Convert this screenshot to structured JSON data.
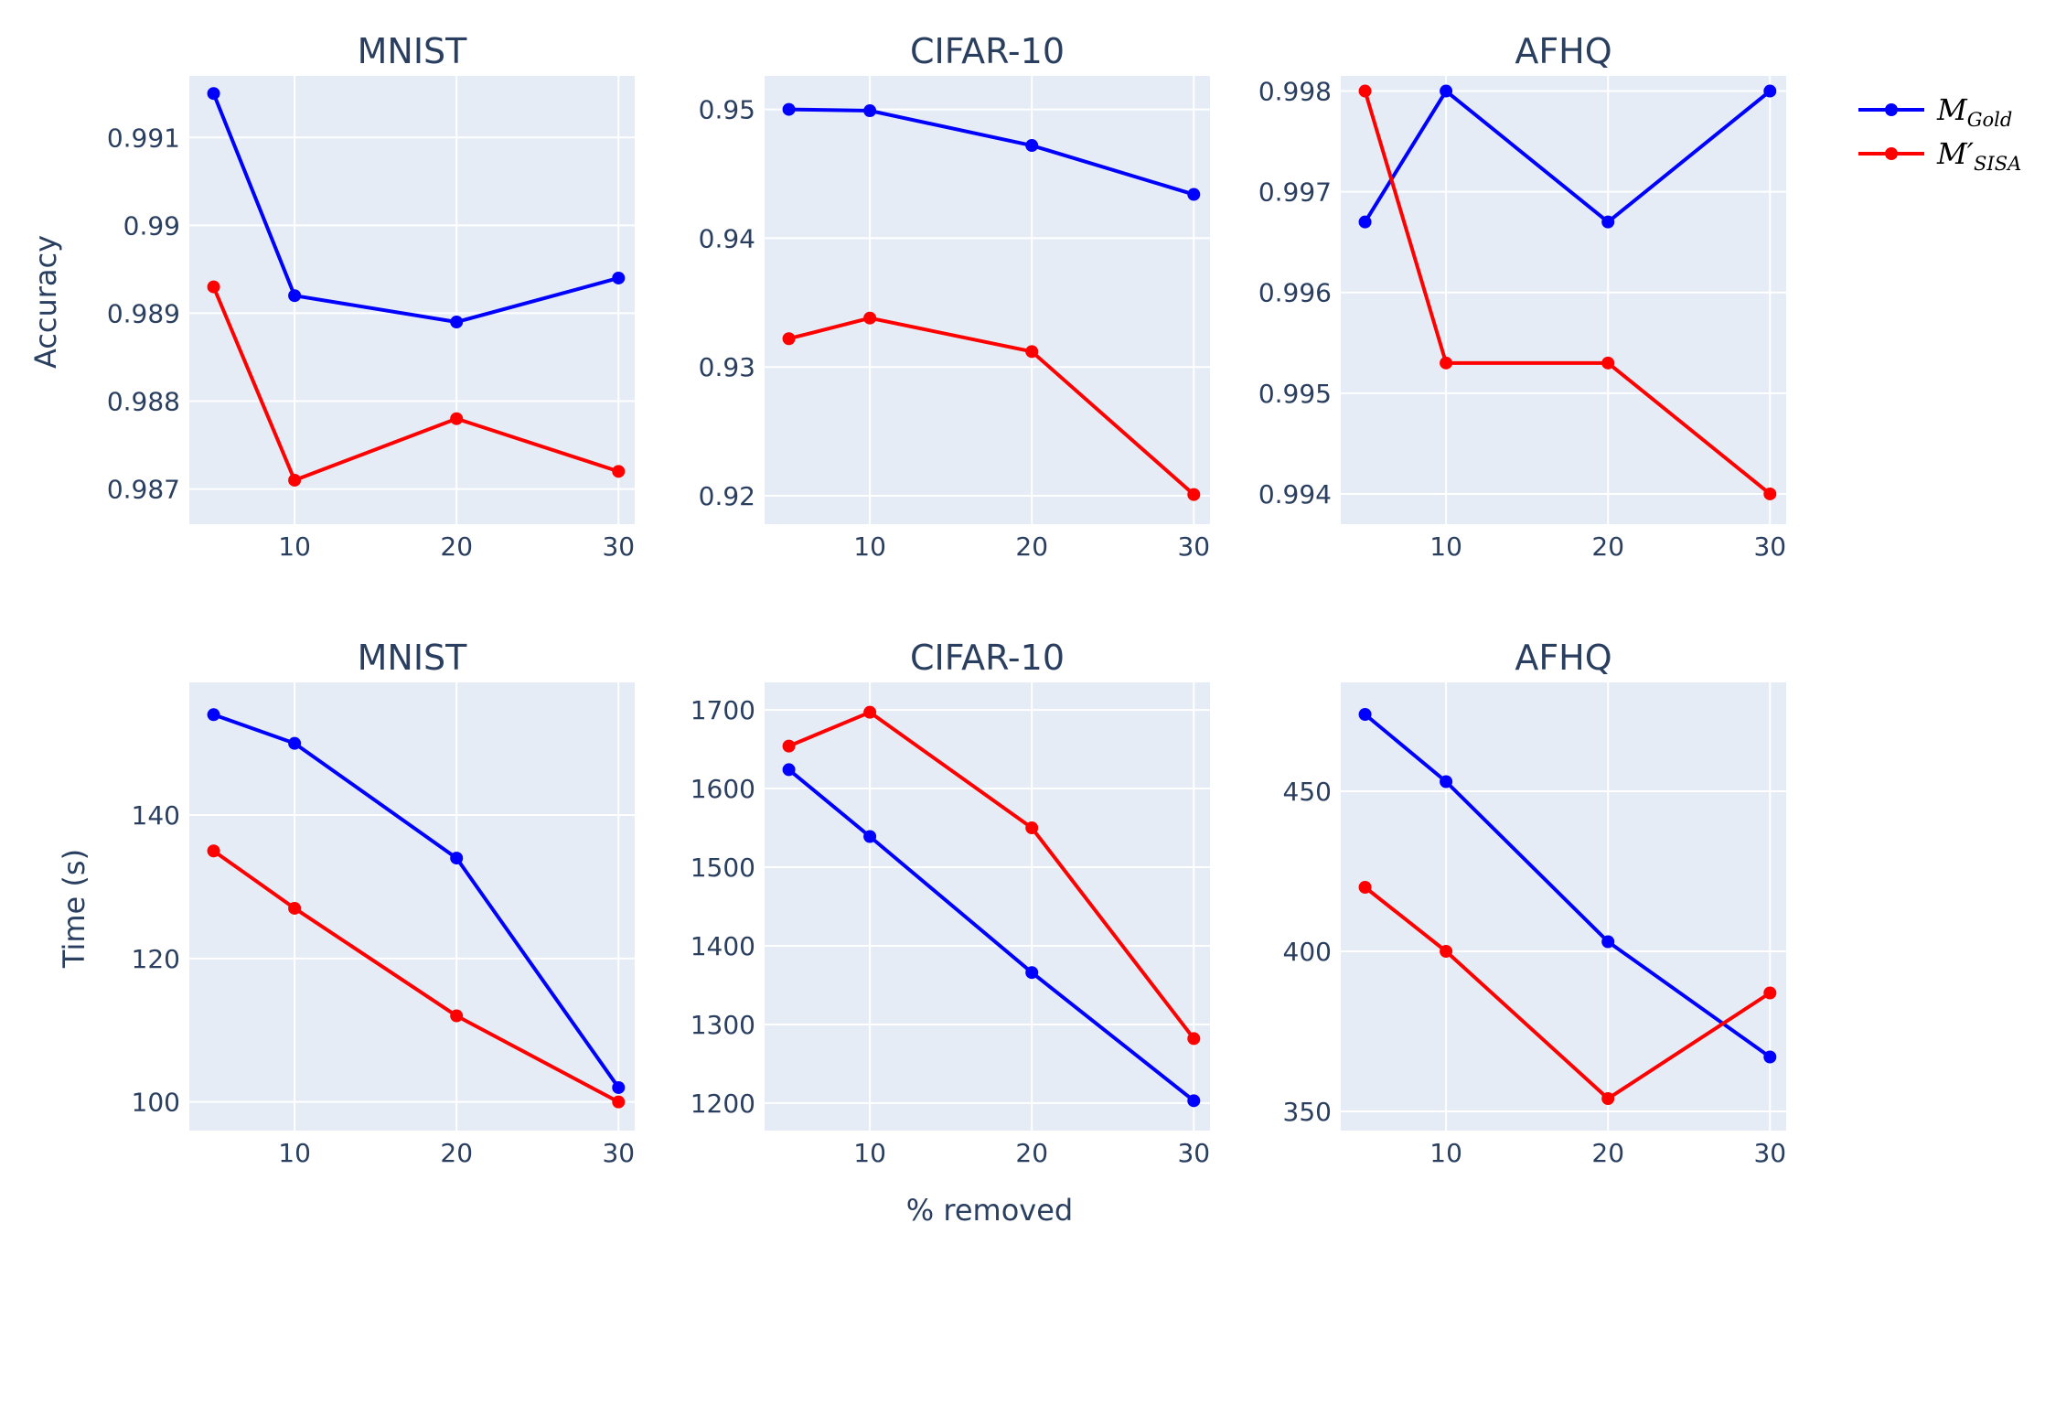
{
  "figure": {
    "xlabel": "% removed",
    "ylabel_top": "Accuracy",
    "ylabel_bottom": "Time (s)",
    "plot_bg": "#e5ecf6",
    "grid_color": "#ffffff"
  },
  "legend": {
    "placement": "top-right",
    "items": [
      {
        "base": "M",
        "sub": "Gold",
        "prime": "",
        "color": "#0000ff"
      },
      {
        "base": "M",
        "sub": "SISA",
        "prime": "′",
        "color": "#ff0000"
      }
    ]
  },
  "chart_data": [
    {
      "type": "line",
      "title": "MNIST",
      "xlabel": "",
      "ylabel": "Accuracy",
      "xlim": [
        3.5,
        31
      ],
      "ylim": [
        0.9866,
        0.9917
      ],
      "xticks": [
        10,
        20,
        30
      ],
      "yticks": [
        0.987,
        0.988,
        0.989,
        0.99,
        0.991
      ],
      "ytick_labels": [
        "0.987",
        "0.988",
        "0.989",
        "0.99",
        "0.991"
      ],
      "x": [
        5,
        10,
        20,
        30
      ],
      "series": [
        {
          "color": "#0000ff",
          "values": [
            0.9915,
            0.9892,
            0.9889,
            0.9894
          ]
        },
        {
          "color": "#ff0000",
          "values": [
            0.9893,
            0.9871,
            0.9878,
            0.9872
          ]
        }
      ]
    },
    {
      "type": "line",
      "title": "CIFAR-10",
      "xlabel": "",
      "ylabel": "",
      "xlim": [
        3.5,
        31
      ],
      "ylim": [
        0.9178,
        0.9526
      ],
      "xticks": [
        10,
        20,
        30
      ],
      "yticks": [
        0.92,
        0.93,
        0.94,
        0.95
      ],
      "ytick_labels": [
        "0.92",
        "0.93",
        "0.94",
        "0.95"
      ],
      "x": [
        5,
        10,
        20,
        30
      ],
      "series": [
        {
          "color": "#0000ff",
          "values": [
            0.95,
            0.9499,
            0.9472,
            0.9434
          ]
        },
        {
          "color": "#ff0000",
          "values": [
            0.9322,
            0.9338,
            0.9312,
            0.9201
          ]
        }
      ]
    },
    {
      "type": "line",
      "title": "AFHQ",
      "xlabel": "",
      "ylabel": "",
      "xlim": [
        3.5,
        31
      ],
      "ylim": [
        0.9937,
        0.99815
      ],
      "xticks": [
        10,
        20,
        30
      ],
      "yticks": [
        0.994,
        0.995,
        0.996,
        0.997,
        0.998
      ],
      "ytick_labels": [
        "0.994",
        "0.995",
        "0.996",
        "0.997",
        "0.998"
      ],
      "x": [
        5,
        10,
        20,
        30
      ],
      "series": [
        {
          "color": "#0000ff",
          "values": [
            0.9967,
            0.998,
            0.9967,
            0.998
          ]
        },
        {
          "color": "#ff0000",
          "values": [
            0.998,
            0.9953,
            0.9953,
            0.994
          ]
        }
      ]
    },
    {
      "type": "line",
      "title": "MNIST",
      "xlabel": "",
      "ylabel": "Time (s)",
      "xlim": [
        3.5,
        31
      ],
      "ylim": [
        96,
        158.5
      ],
      "xticks": [
        10,
        20,
        30
      ],
      "yticks": [
        100,
        120,
        140
      ],
      "ytick_labels": [
        "100",
        "120",
        "140"
      ],
      "x": [
        5,
        10,
        20,
        30
      ],
      "series": [
        {
          "color": "#0000ff",
          "values": [
            154,
            150,
            134,
            102
          ]
        },
        {
          "color": "#ff0000",
          "values": [
            135,
            127,
            112,
            100
          ]
        }
      ]
    },
    {
      "type": "line",
      "title": "CIFAR-10",
      "xlabel": "% removed",
      "ylabel": "",
      "xlim": [
        3.5,
        31
      ],
      "ylim": [
        1165,
        1735
      ],
      "xticks": [
        10,
        20,
        30
      ],
      "yticks": [
        1200,
        1300,
        1400,
        1500,
        1600,
        1700
      ],
      "ytick_labels": [
        "1200",
        "1300",
        "1400",
        "1500",
        "1600",
        "1700"
      ],
      "x": [
        5,
        10,
        20,
        30
      ],
      "series": [
        {
          "color": "#0000ff",
          "values": [
            1624,
            1539,
            1366,
            1203
          ]
        },
        {
          "color": "#ff0000",
          "values": [
            1654,
            1697,
            1550,
            1282
          ]
        }
      ]
    },
    {
      "type": "line",
      "title": "AFHQ",
      "xlabel": "",
      "ylabel": "",
      "xlim": [
        3.5,
        31
      ],
      "ylim": [
        344,
        484
      ],
      "xticks": [
        10,
        20,
        30
      ],
      "yticks": [
        350,
        400,
        450
      ],
      "ytick_labels": [
        "350",
        "400",
        "450"
      ],
      "x": [
        5,
        10,
        20,
        30
      ],
      "series": [
        {
          "color": "#0000ff",
          "values": [
            474,
            453,
            403,
            367
          ]
        },
        {
          "color": "#ff0000",
          "values": [
            420,
            400,
            354,
            387
          ]
        }
      ]
    }
  ]
}
